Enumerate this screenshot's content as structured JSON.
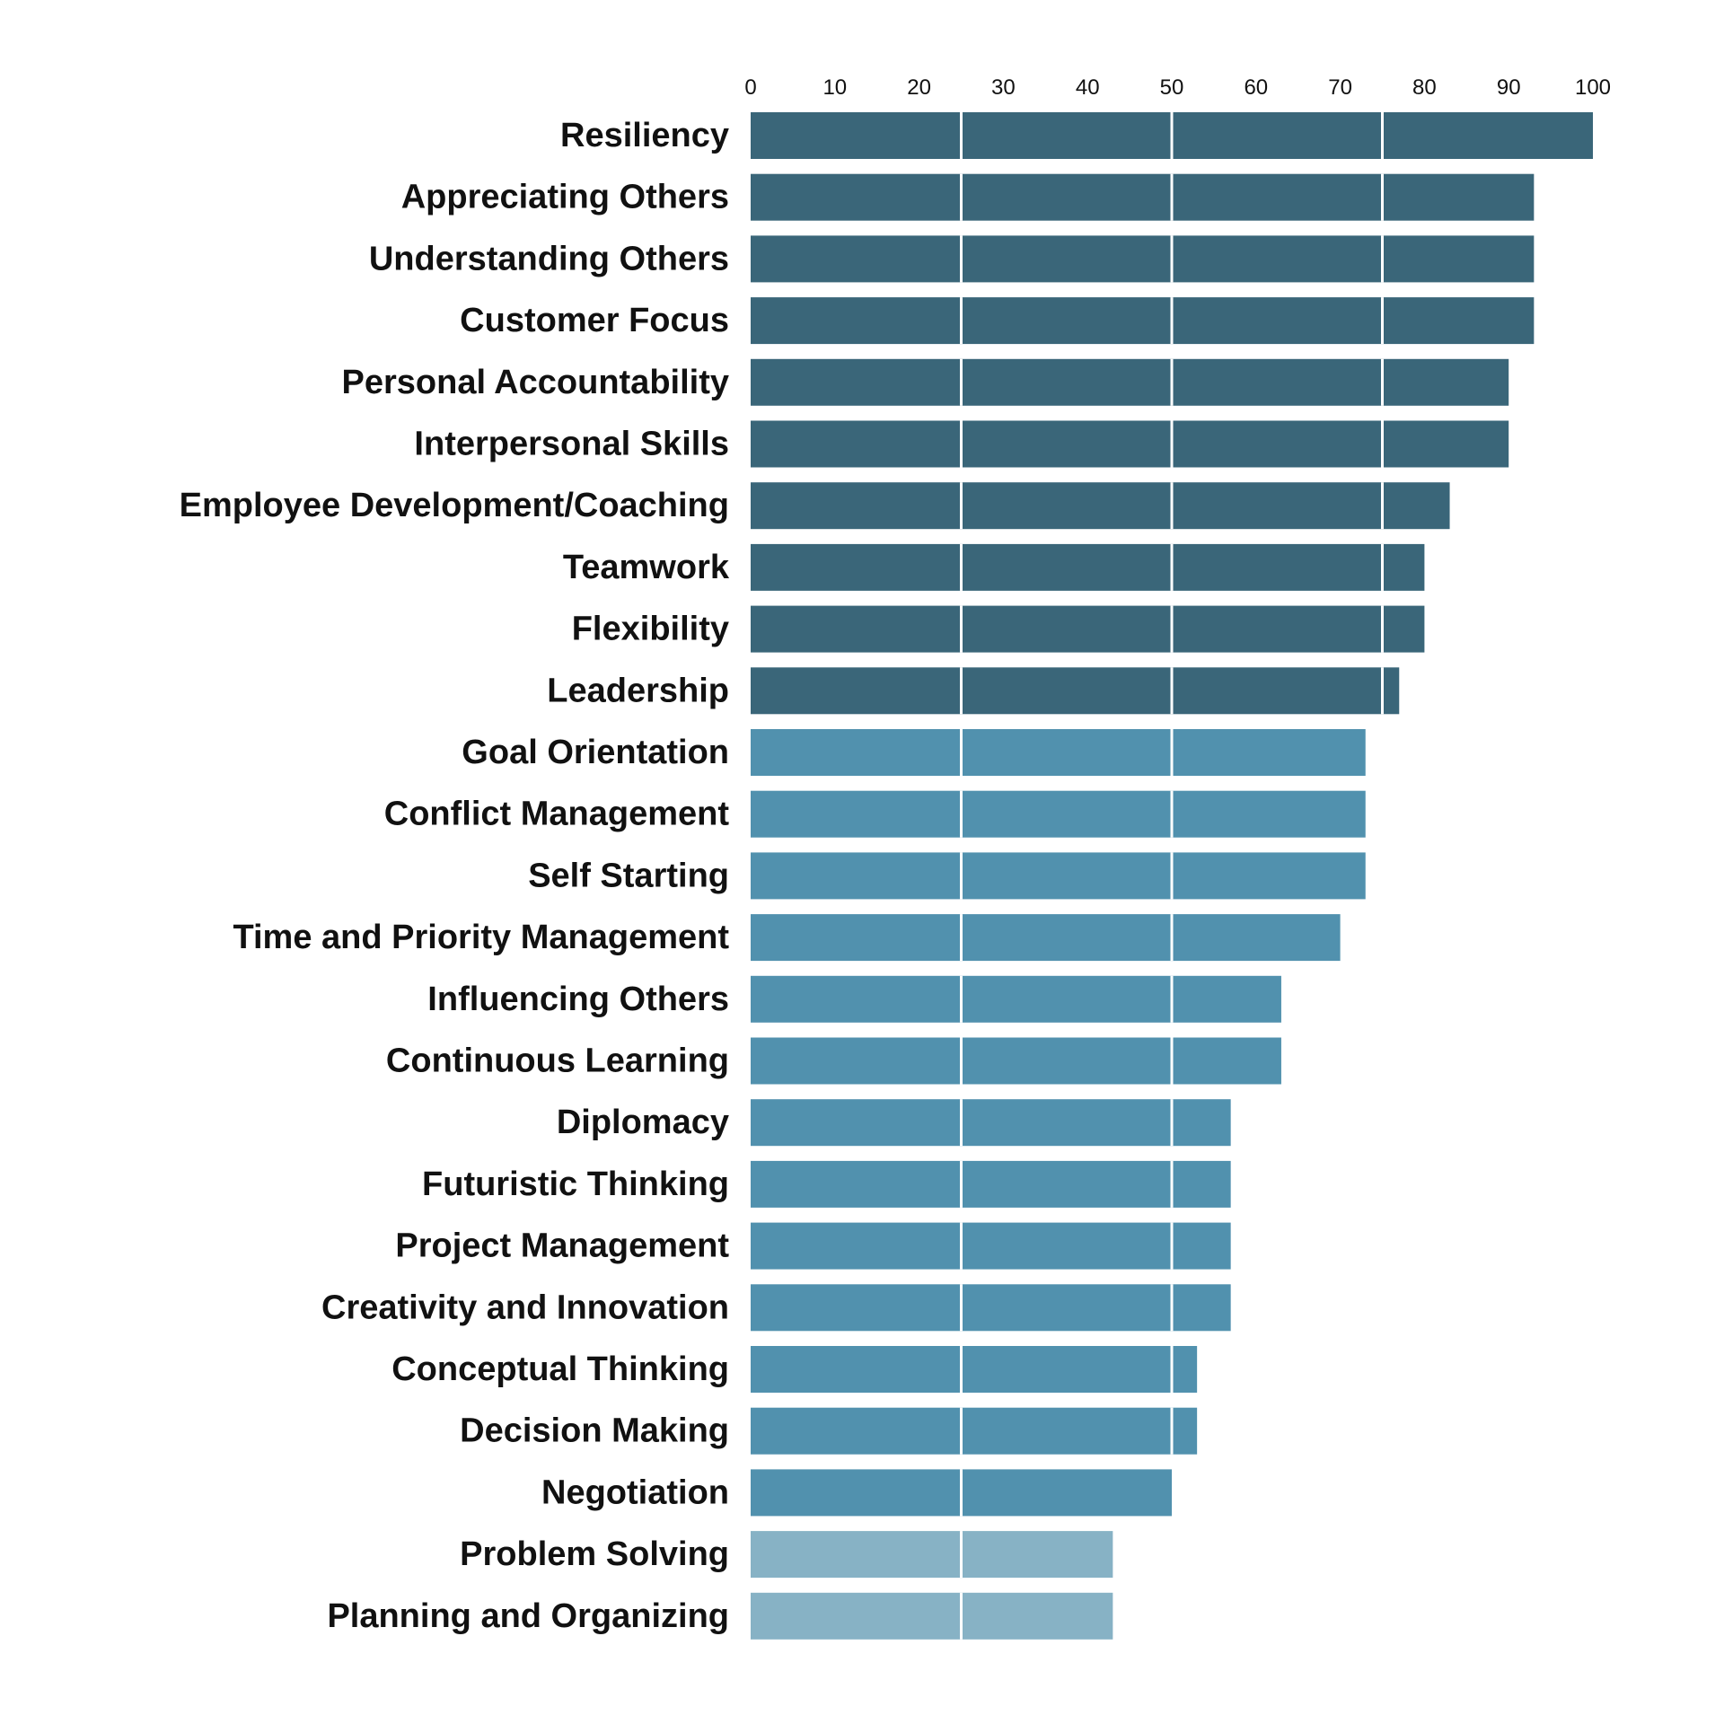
{
  "chart_data": {
    "type": "bar",
    "orientation": "horizontal",
    "title": "",
    "xlabel": "",
    "ylabel": "",
    "xlim": [
      0,
      100
    ],
    "x_ticks": [
      0,
      10,
      20,
      30,
      40,
      50,
      60,
      70,
      80,
      90,
      100
    ],
    "axis_position": "top",
    "grid": false,
    "reference_lines": [
      25,
      50,
      75
    ],
    "categories": [
      "Resiliency",
      "Appreciating Others",
      "Understanding Others",
      "Customer Focus",
      "Personal Accountability",
      "Interpersonal Skills",
      "Employee Development/Coaching",
      "Teamwork",
      "Flexibility",
      "Leadership",
      "Goal Orientation",
      "Conflict Management",
      "Self Starting",
      "Time and Priority Management",
      "Influencing Others",
      "Continuous Learning",
      "Diplomacy",
      "Futuristic Thinking",
      "Project Management",
      "Creativity and Innovation",
      "Conceptual Thinking",
      "Decision Making",
      "Negotiation",
      "Problem Solving",
      "Planning and Organizing"
    ],
    "values": [
      100,
      93,
      93,
      93,
      90,
      90,
      83,
      80,
      80,
      77,
      73,
      73,
      73,
      70,
      63,
      63,
      57,
      57,
      57,
      57,
      53,
      53,
      50,
      43,
      43
    ],
    "colors": {
      "high": "#3a6679",
      "mid": "#5191ae",
      "low": "#87b2c5",
      "divider": "#ffffff"
    }
  }
}
